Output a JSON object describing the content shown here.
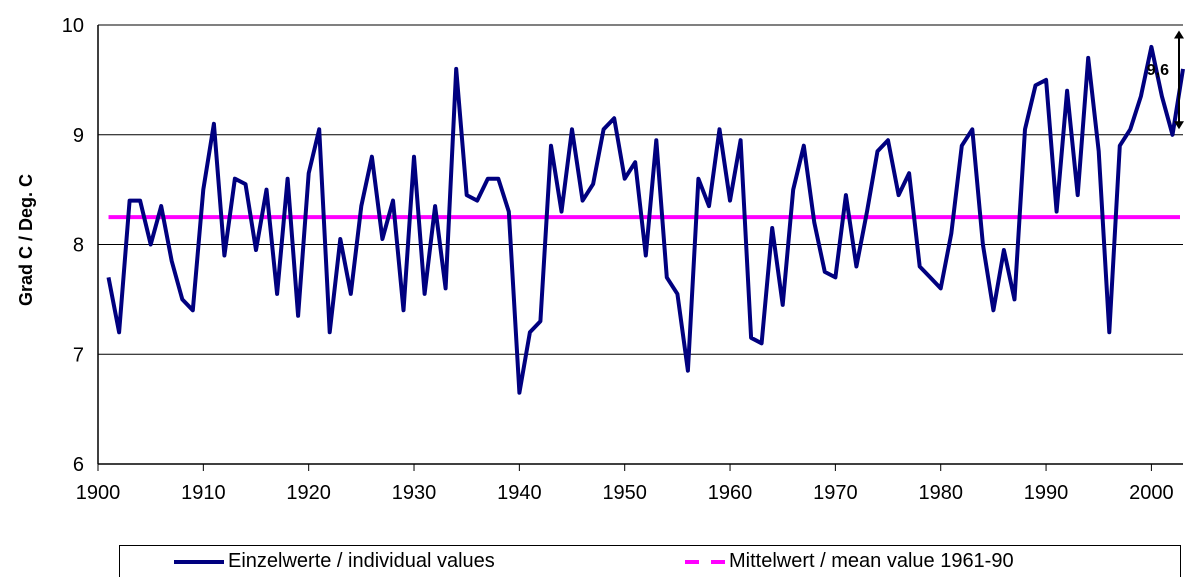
{
  "chart_data": {
    "type": "line",
    "ylabel": "Grad C / Deg. C",
    "xlim": [
      1900,
      2003
    ],
    "ylim": [
      6,
      10
    ],
    "xticks": [
      1900,
      1910,
      1920,
      1930,
      1940,
      1950,
      1960,
      1970,
      1980,
      1990,
      2000
    ],
    "yticks": [
      6,
      7,
      8,
      9,
      10
    ],
    "grid": "horizontal",
    "legend_position": "bottom",
    "series": [
      {
        "name": "Einzelwerte / individual values",
        "color": "#00007f",
        "style": "solid",
        "points": [
          [
            1901,
            7.7
          ],
          [
            1902,
            7.2
          ],
          [
            1903,
            8.4
          ],
          [
            1904,
            8.4
          ],
          [
            1905,
            8.0
          ],
          [
            1906,
            8.35
          ],
          [
            1907,
            7.85
          ],
          [
            1908,
            7.5
          ],
          [
            1909,
            7.4
          ],
          [
            1910,
            8.5
          ],
          [
            1911,
            9.1
          ],
          [
            1912,
            7.9
          ],
          [
            1913,
            8.6
          ],
          [
            1914,
            8.55
          ],
          [
            1915,
            7.95
          ],
          [
            1916,
            8.5
          ],
          [
            1917,
            7.55
          ],
          [
            1918,
            8.6
          ],
          [
            1919,
            7.35
          ],
          [
            1920,
            8.65
          ],
          [
            1921,
            9.05
          ],
          [
            1922,
            7.2
          ],
          [
            1923,
            8.05
          ],
          [
            1924,
            7.55
          ],
          [
            1925,
            8.35
          ],
          [
            1926,
            8.8
          ],
          [
            1927,
            8.05
          ],
          [
            1928,
            8.4
          ],
          [
            1929,
            7.4
          ],
          [
            1930,
            8.8
          ],
          [
            1931,
            7.55
          ],
          [
            1932,
            8.35
          ],
          [
            1933,
            7.6
          ],
          [
            1934,
            9.6
          ],
          [
            1935,
            8.45
          ],
          [
            1936,
            8.4
          ],
          [
            1937,
            8.6
          ],
          [
            1938,
            8.6
          ],
          [
            1939,
            8.3
          ],
          [
            1940,
            6.65
          ],
          [
            1941,
            7.2
          ],
          [
            1942,
            7.3
          ],
          [
            1943,
            8.9
          ],
          [
            1944,
            8.3
          ],
          [
            1945,
            9.05
          ],
          [
            1946,
            8.4
          ],
          [
            1947,
            8.55
          ],
          [
            1948,
            9.05
          ],
          [
            1949,
            9.15
          ],
          [
            1950,
            8.6
          ],
          [
            1951,
            8.75
          ],
          [
            1952,
            7.9
          ],
          [
            1953,
            8.95
          ],
          [
            1954,
            7.7
          ],
          [
            1955,
            7.55
          ],
          [
            1956,
            6.85
          ],
          [
            1957,
            8.6
          ],
          [
            1958,
            8.35
          ],
          [
            1959,
            9.05
          ],
          [
            1960,
            8.4
          ],
          [
            1961,
            8.95
          ],
          [
            1962,
            7.15
          ],
          [
            1963,
            7.1
          ],
          [
            1964,
            8.15
          ],
          [
            1965,
            7.45
          ],
          [
            1966,
            8.5
          ],
          [
            1967,
            8.9
          ],
          [
            1968,
            8.2
          ],
          [
            1969,
            7.75
          ],
          [
            1970,
            7.7
          ],
          [
            1971,
            8.45
          ],
          [
            1972,
            7.8
          ],
          [
            1973,
            8.3
          ],
          [
            1974,
            8.85
          ],
          [
            1975,
            8.95
          ],
          [
            1976,
            8.45
          ],
          [
            1977,
            8.65
          ],
          [
            1978,
            7.8
          ],
          [
            1979,
            7.7
          ],
          [
            1980,
            7.6
          ],
          [
            1981,
            8.1
          ],
          [
            1982,
            8.9
          ],
          [
            1983,
            9.05
          ],
          [
            1984,
            8.0
          ],
          [
            1985,
            7.4
          ],
          [
            1986,
            7.95
          ],
          [
            1987,
            7.5
          ],
          [
            1988,
            9.05
          ],
          [
            1989,
            9.45
          ],
          [
            1990,
            9.5
          ],
          [
            1991,
            8.3
          ],
          [
            1992,
            9.4
          ],
          [
            1993,
            8.45
          ],
          [
            1994,
            9.7
          ],
          [
            1995,
            8.85
          ],
          [
            1996,
            7.2
          ],
          [
            1997,
            8.9
          ],
          [
            1998,
            9.05
          ],
          [
            1999,
            9.35
          ],
          [
            2000,
            9.8
          ],
          [
            2001,
            9.35
          ],
          [
            2002,
            9.0
          ],
          [
            2003,
            9.6
          ]
        ]
      },
      {
        "name": "Mittelwert / mean value 1961-90",
        "color": "#ff00ff",
        "style": "dashed",
        "value": 8.25
      }
    ],
    "annotation": {
      "text": "9,6",
      "value": 9.6
    }
  }
}
